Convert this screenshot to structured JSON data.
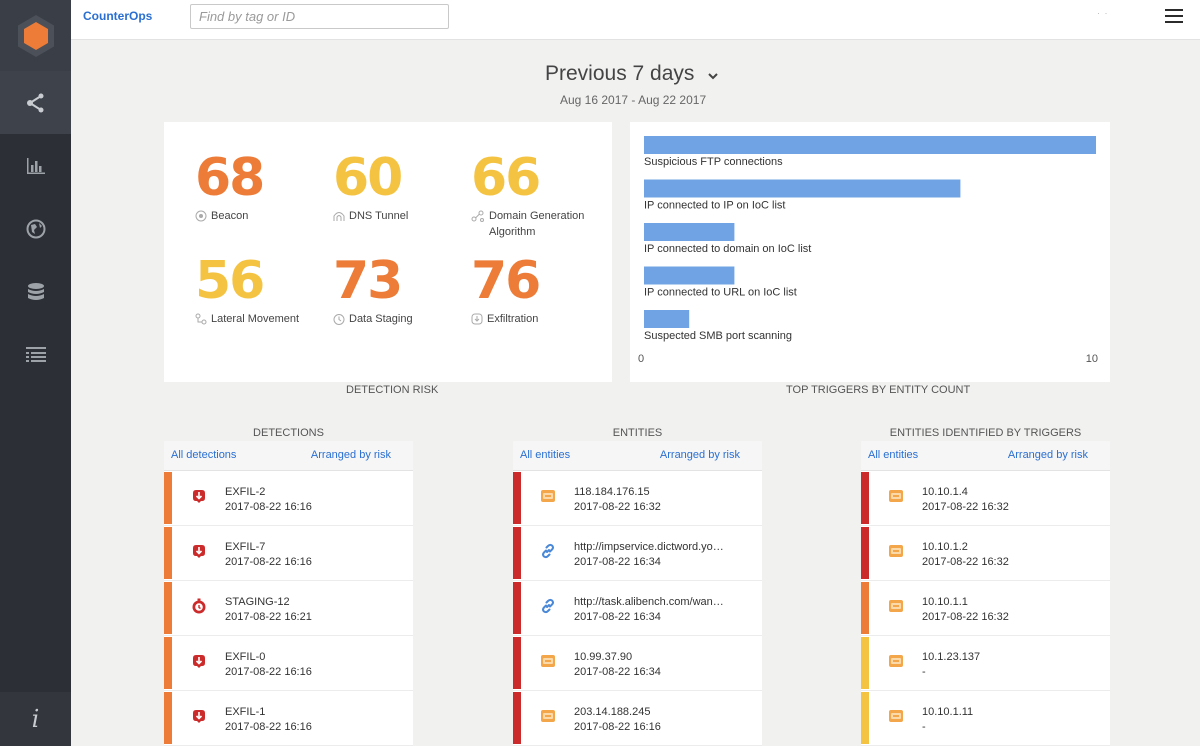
{
  "app": {
    "brand": "CounterOps"
  },
  "search": {
    "placeholder": "Find by tag or ID"
  },
  "topbar": {
    "dots": "· ·"
  },
  "sidebar": {
    "info_label": "i"
  },
  "header": {
    "period": "Previous 7 days",
    "date_range": "Aug 16 2017 - Aug 22 2017"
  },
  "risk": {
    "caption": "DETECTION RISK",
    "items": [
      {
        "value": "68",
        "label": "Beacon",
        "color": "#ec7c38",
        "icon": "beacon-icon"
      },
      {
        "value": "60",
        "label": "DNS Tunnel",
        "color": "#f5c342",
        "icon": "dns-tunnel-icon"
      },
      {
        "value": "66",
        "label": "Domain Generation Algorithm",
        "color": "#f5c342",
        "icon": "domain-generation-icon"
      },
      {
        "value": "56",
        "label": "Lateral Movement",
        "color": "#f5c342",
        "icon": "lateral-movement-icon"
      },
      {
        "value": "73",
        "label": "Data Staging",
        "color": "#ec7c38",
        "icon": "data-staging-icon"
      },
      {
        "value": "76",
        "label": "Exfiltration",
        "color": "#ec7c38",
        "icon": "exfiltration-icon"
      }
    ]
  },
  "chart_data": {
    "type": "bar",
    "orientation": "horizontal",
    "title": "TOP TRIGGERS BY ENTITY COUNT",
    "categories": [
      "Suspicious FTP connections",
      "IP connected to IP on IoC list",
      "IP connected to domain on IoC list",
      "IP connected to URL on IoC list",
      "Suspected SMB port scanning"
    ],
    "values": [
      10,
      7,
      2,
      2,
      1
    ],
    "xlim": [
      0,
      10
    ],
    "x_ticks": [
      "0",
      "10"
    ],
    "bar_color": "#6fa3e3"
  },
  "detections": {
    "title": "DETECTIONS",
    "link_all": "All detections",
    "link_sort": "Arranged by risk",
    "rows": [
      {
        "name": "EXFIL-2",
        "time": "2017-08-22 16:16",
        "color": "#ec7c38",
        "icon": "exfiltration-icon"
      },
      {
        "name": "EXFIL-7",
        "time": "2017-08-22 16:16",
        "color": "#ec7c38",
        "icon": "exfiltration-icon"
      },
      {
        "name": "STAGING-12",
        "time": "2017-08-22 16:21",
        "color": "#ec7c38",
        "icon": "data-staging-icon"
      },
      {
        "name": "EXFIL-0",
        "time": "2017-08-22 16:16",
        "color": "#ec7c38",
        "icon": "exfiltration-icon"
      },
      {
        "name": "EXFIL-1",
        "time": "2017-08-22 16:16",
        "color": "#ec7c38",
        "icon": "exfiltration-icon"
      }
    ]
  },
  "entities": {
    "title": "ENTITIES",
    "link_all": "All entities",
    "link_sort": "Arranged by risk",
    "rows": [
      {
        "name": "118.184.176.15",
        "time": "2017-08-22 16:32",
        "color": "#cc2b2b",
        "icon": "host-icon"
      },
      {
        "name": "http://impservice.dictword.yo…",
        "time": "2017-08-22 16:34",
        "color": "#cc2b2b",
        "icon": "link-icon"
      },
      {
        "name": "http://task.alibench.com/wan…",
        "time": "2017-08-22 16:34",
        "color": "#cc2b2b",
        "icon": "link-icon"
      },
      {
        "name": "10.99.37.90",
        "time": "2017-08-22 16:34",
        "color": "#cc2b2b",
        "icon": "host-icon"
      },
      {
        "name": "203.14.188.245",
        "time": "2017-08-22 16:16",
        "color": "#cc2b2b",
        "icon": "host-icon"
      }
    ]
  },
  "trigger_entities": {
    "title": "ENTITIES IDENTIFIED BY TRIGGERS",
    "link_all": "All entities",
    "link_sort": "Arranged by risk",
    "rows": [
      {
        "name": "10.10.1.4",
        "time": "2017-08-22 16:32",
        "color": "#cc2b2b",
        "icon": "host-icon"
      },
      {
        "name": "10.10.1.2",
        "time": "2017-08-22 16:32",
        "color": "#cc2b2b",
        "icon": "host-icon"
      },
      {
        "name": "10.10.1.1",
        "time": "2017-08-22 16:32",
        "color": "#ec7c38",
        "icon": "host-icon"
      },
      {
        "name": "10.1.23.137",
        "time": "-",
        "color": "#f5c342",
        "icon": "host-icon"
      },
      {
        "name": "10.10.1.11",
        "time": "-",
        "color": "#f5c342",
        "icon": "host-icon"
      }
    ]
  }
}
